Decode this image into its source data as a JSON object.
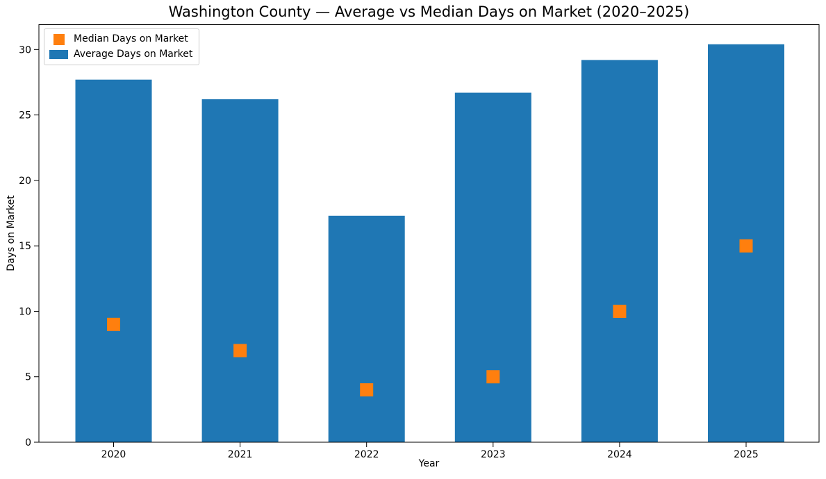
{
  "chart_data": {
    "type": "bar",
    "title": "Washington County — Average vs Median Days on Market (2020–2025)",
    "xlabel": "Year",
    "ylabel": "Days on Market",
    "categories": [
      "2020",
      "2021",
      "2022",
      "2023",
      "2024",
      "2025"
    ],
    "series": [
      {
        "name": "Average Days on Market",
        "render": "bar",
        "color": "#1f77b4",
        "values": [
          27.7,
          26.2,
          17.3,
          26.7,
          29.2,
          30.4
        ]
      },
      {
        "name": "Median Days on Market",
        "render": "square-marker",
        "color": "#ff7f0e",
        "values": [
          9,
          7,
          4,
          5,
          10,
          15
        ]
      }
    ],
    "ylim": [
      0,
      31.9
    ],
    "yticks": [
      0,
      5,
      10,
      15,
      20,
      25,
      30
    ],
    "grid": false,
    "background": "#ffffff",
    "legend": {
      "position": "upper-left",
      "entries": [
        {
          "label": "Median Days on Market",
          "swatch": "square",
          "color": "#ff7f0e"
        },
        {
          "label": "Average Days on Market",
          "swatch": "rect",
          "color": "#1f77b4"
        }
      ]
    }
  }
}
